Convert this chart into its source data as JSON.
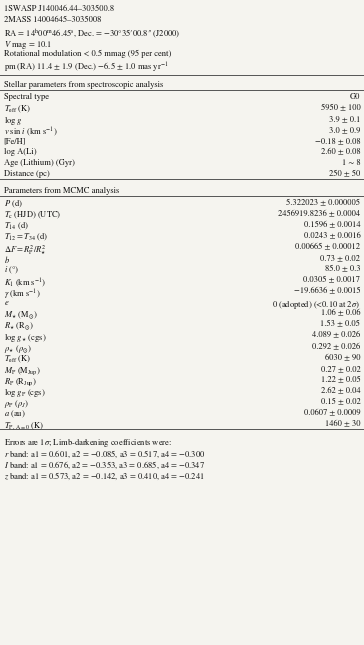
{
  "header_lines": [
    "1SWASP J140046.44–303500.8",
    "2MASS 14004645–3035008",
    "RA = 14$^{\\rm h}$00$^{\\rm m}$46.45$^{\\rm s}$, Dec. = −30°35′00.8″ (J2000)",
    "$V$ mag = 10.1",
    "Rotational modulation < 0.5 mmag (95 per cent)",
    "pm (RA) 11.4 ± 1.9 (Dec.) −6.5 ± 1.0 mas yr$^{-1}$"
  ],
  "section1_header": "Stellar parameters from spectroscopic analysis",
  "section1_rows": [
    [
      "Spectral type",
      "G0"
    ],
    [
      "$T_{\\rm eff}$ (K)",
      "5950 ± 100"
    ],
    [
      "log $g$",
      "3.9 ± 0.1"
    ],
    [
      "$v$ sin $i$ (km s$^{-1}$)",
      "3.0 ± 0.9"
    ],
    [
      "[Fe/H]",
      "−0.18 ± 0.08"
    ],
    [
      "log A(Li)",
      "2.60 ± 0.08"
    ],
    [
      "Age (Lithium) (Gyr)",
      "1 ∼ 8"
    ],
    [
      "Distance (pc)",
      "250 ± 50"
    ]
  ],
  "section2_header": "Parameters from MCMC analysis",
  "section2_rows": [
    [
      "$P$ (d)",
      "5.322023 ± 0.000005"
    ],
    [
      "$T_{\\rm c}$ (HJD) (UTC)",
      "2456919.8236 ± 0.0004"
    ],
    [
      "$T_{14}$ (d)",
      "0.1596 ± 0.0014"
    ],
    [
      "$T_{12} = T_{34}$ (d)",
      "0.0243 ± 0.0016"
    ],
    [
      "$\\Delta F = R_{\\rm P}^2/R_{\\star}^2$",
      "0.00665 ± 0.00012"
    ],
    [
      "$b$",
      "0.73 ± 0.02"
    ],
    [
      "$i$ (°)",
      "85.0 ± 0.3"
    ],
    [
      "$K_1$ (km s$^{-1}$)",
      "0.0305 ± 0.0017"
    ],
    [
      "$\\gamma$ (km s$^{-1}$)",
      "−19.6636 ± 0.0015"
    ],
    [
      "$e$",
      "0 (adopted) (<0.10 at 2$\\sigma$)"
    ],
    [
      "$M_{\\star}$ (M$_{\\odot}$)",
      "1.06 ± 0.06"
    ],
    [
      "$R_{\\star}$ (R$_{\\odot}$)",
      "1.53 ± 0.05"
    ],
    [
      "log $g_{\\star}$ (cgs)",
      "4.089 ± 0.026"
    ],
    [
      "$\\rho_{\\star}$ ($\\rho_{\\odot}$)",
      "0.292 ± 0.026"
    ],
    [
      "$T_{\\rm eff}$ (K)",
      "6030 ± 90"
    ],
    [
      "$M_{\\rm P}$ (M$_{\\rm Jup}$)",
      "0.27 ± 0.02"
    ],
    [
      "$R_{\\rm P}$ (R$_{\\rm Jup}$)",
      "1.22 ± 0.05"
    ],
    [
      "log $g_{\\rm P}$ (cgs)",
      "2.62 ± 0.04"
    ],
    [
      "$\\rho_{\\rm P}$ ($\\rho_J$)",
      "0.15 ± 0.02"
    ],
    [
      "$a$ (au)",
      "0.0607 ± 0.0009"
    ],
    [
      "$T_{\\rm P,\\, A=0}$ (K)",
      "1460 ± 30"
    ]
  ],
  "footer_lines": [
    "Errors are 1$\\sigma$; Limb-darkening coefficients were:",
    "$r$ band: a1 = 0.601, a2 = −0.085, a3 = 0.517, a4 = −0.300",
    "$I$ band: a1 = 0.676, a2 = −0.353, a3 = 0.685, a4 = −0.347",
    "$z$ band: a1 = 0.573, a2 = −0.142, a3 = 0.410, a4 = −0.241"
  ],
  "bg_color": "#f5f4ef",
  "text_color": "#111111",
  "font_size": 6.1,
  "line_color": "#555555"
}
